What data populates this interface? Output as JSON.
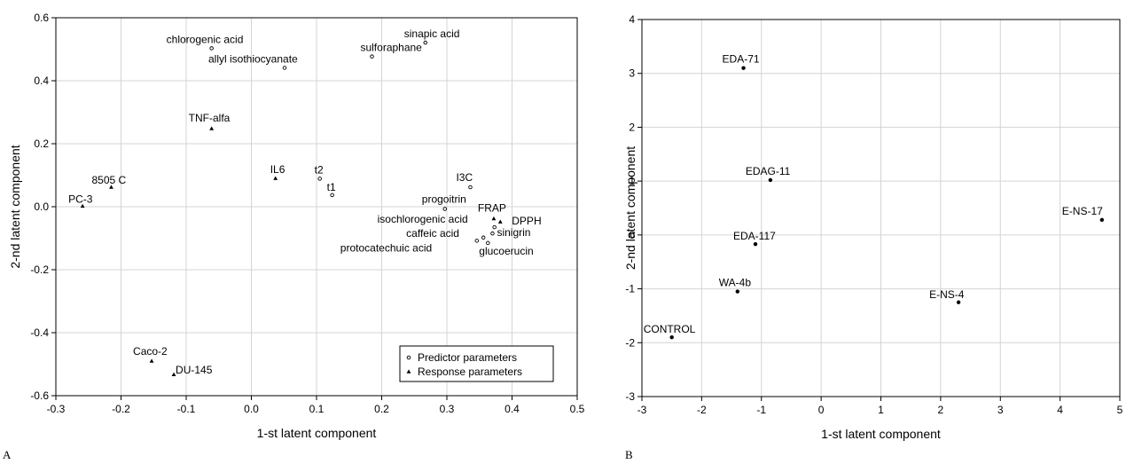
{
  "chart_data": [
    {
      "type": "scatter",
      "panel_label": "A",
      "xlabel": "1-st latent component",
      "ylabel": "2-nd latent component",
      "xlim": [
        -0.3,
        0.5
      ],
      "ylim": [
        -0.6,
        0.6
      ],
      "xticks": [
        -0.3,
        -0.2,
        -0.1,
        0.0,
        0.1,
        0.2,
        0.3,
        0.4,
        0.5
      ],
      "xtick_labels": [
        "-0.3",
        "-0.2",
        "-0.1",
        "0.0",
        "0.1",
        "0.2",
        "0.3",
        "0.4",
        "0.5"
      ],
      "yticks": [
        -0.6,
        -0.4,
        -0.2,
        0.0,
        0.2,
        0.4,
        0.6
      ],
      "ytick_labels": [
        "-0.6",
        "-0.4",
        "-0.2",
        "0.0",
        "0.2",
        "0.4",
        "0.6"
      ],
      "grid": true,
      "legend_position": "bottom-right",
      "series": [
        {
          "name": "Predictor parameters",
          "marker": "open-circle",
          "points": [
            {
              "label": "chlorogenic acid",
              "x": -0.061,
              "y": 0.503
            },
            {
              "label": "allyl isothiocyanate",
              "x": 0.051,
              "y": 0.441
            },
            {
              "label": "sulforaphane",
              "x": 0.185,
              "y": 0.477
            },
            {
              "label": "sinapic acid",
              "x": 0.267,
              "y": 0.521
            },
            {
              "label": "t2",
              "x": 0.105,
              "y": 0.089
            },
            {
              "label": "t1",
              "x": 0.124,
              "y": 0.037
            },
            {
              "label": "I3C",
              "x": 0.336,
              "y": 0.062
            },
            {
              "label": "progoitrin",
              "x": 0.297,
              "y": -0.007
            },
            {
              "label": "isochlorogenic acid",
              "x": 0.373,
              "y": -0.065
            },
            {
              "label": "caffeic acid",
              "x": 0.356,
              "y": -0.098
            },
            {
              "label": "sinigrin",
              "x": 0.37,
              "y": -0.085
            },
            {
              "label": "glucoerucin",
              "x": 0.363,
              "y": -0.115
            },
            {
              "label": "protocatechuic acid",
              "x": 0.346,
              "y": -0.108
            }
          ]
        },
        {
          "name": "Response parameters",
          "marker": "filled-triangle",
          "points": [
            {
              "label": "TNF-alfa",
              "x": -0.061,
              "y": 0.248
            },
            {
              "label": "IL6",
              "x": 0.037,
              "y": 0.09
            },
            {
              "label": "8505 C",
              "x": -0.215,
              "y": 0.062
            },
            {
              "label": "PC-3",
              "x": -0.259,
              "y": 0.002
            },
            {
              "label": "FRAP",
              "x": 0.372,
              "y": -0.038
            },
            {
              "label": "DPPH",
              "x": 0.382,
              "y": -0.048
            },
            {
              "label": "Caco-2",
              "x": -0.153,
              "y": -0.49
            },
            {
              "label": "DU-145",
              "x": -0.119,
              "y": -0.533
            }
          ]
        }
      ]
    },
    {
      "type": "scatter",
      "panel_label": "B",
      "xlabel": "1-st latent component",
      "ylabel": "2-nd latent component",
      "xlim": [
        -3,
        5
      ],
      "ylim": [
        -3,
        4
      ],
      "xticks": [
        -3,
        -2,
        -1,
        0,
        1,
        2,
        3,
        4,
        5
      ],
      "xtick_labels": [
        "-3",
        "-2",
        "-1",
        "0",
        "1",
        "2",
        "3",
        "4",
        "5"
      ],
      "yticks": [
        -3,
        -2,
        -1,
        0,
        1,
        2,
        3,
        4
      ],
      "ytick_labels": [
        "-3",
        "-2",
        "-1",
        "0",
        "1",
        "2",
        "3",
        "4"
      ],
      "grid": true,
      "series": [
        {
          "marker": "filled-dot",
          "points": [
            {
              "label": "EDA-71",
              "x": -1.3,
              "y": 3.1
            },
            {
              "label": "EDAG-11",
              "x": -0.85,
              "y": 1.02
            },
            {
              "label": "EDA-117",
              "x": -1.1,
              "y": -0.17
            },
            {
              "label": "WA-4b",
              "x": -1.4,
              "y": -1.05
            },
            {
              "label": "CONTROL",
              "x": -2.5,
              "y": -1.9
            },
            {
              "label": "E-NS-4",
              "x": 2.3,
              "y": -1.25
            },
            {
              "label": "E-NS-17",
              "x": 4.7,
              "y": 0.28
            }
          ]
        }
      ]
    }
  ]
}
